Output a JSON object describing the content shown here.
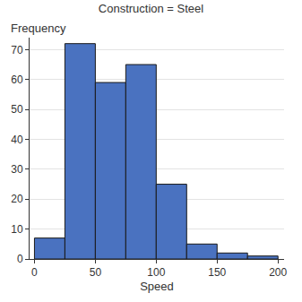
{
  "chart_data": {
    "type": "histogram",
    "title": "Construction = Steel",
    "x_label": "Speed",
    "y_label": "Frequency",
    "bins": [
      0,
      25,
      50,
      75,
      100,
      125,
      150,
      175,
      200
    ],
    "values": [
      7,
      72,
      59,
      65,
      25,
      5,
      2,
      1
    ],
    "color": "#4a72c0",
    "xlim": [
      -4,
      205
    ],
    "xticks": [
      0,
      50,
      100,
      150,
      200
    ],
    "ylim": [
      0,
      74
    ],
    "yticks": [
      0,
      10,
      20,
      30,
      40,
      50,
      60,
      70
    ],
    "grid": true
  }
}
